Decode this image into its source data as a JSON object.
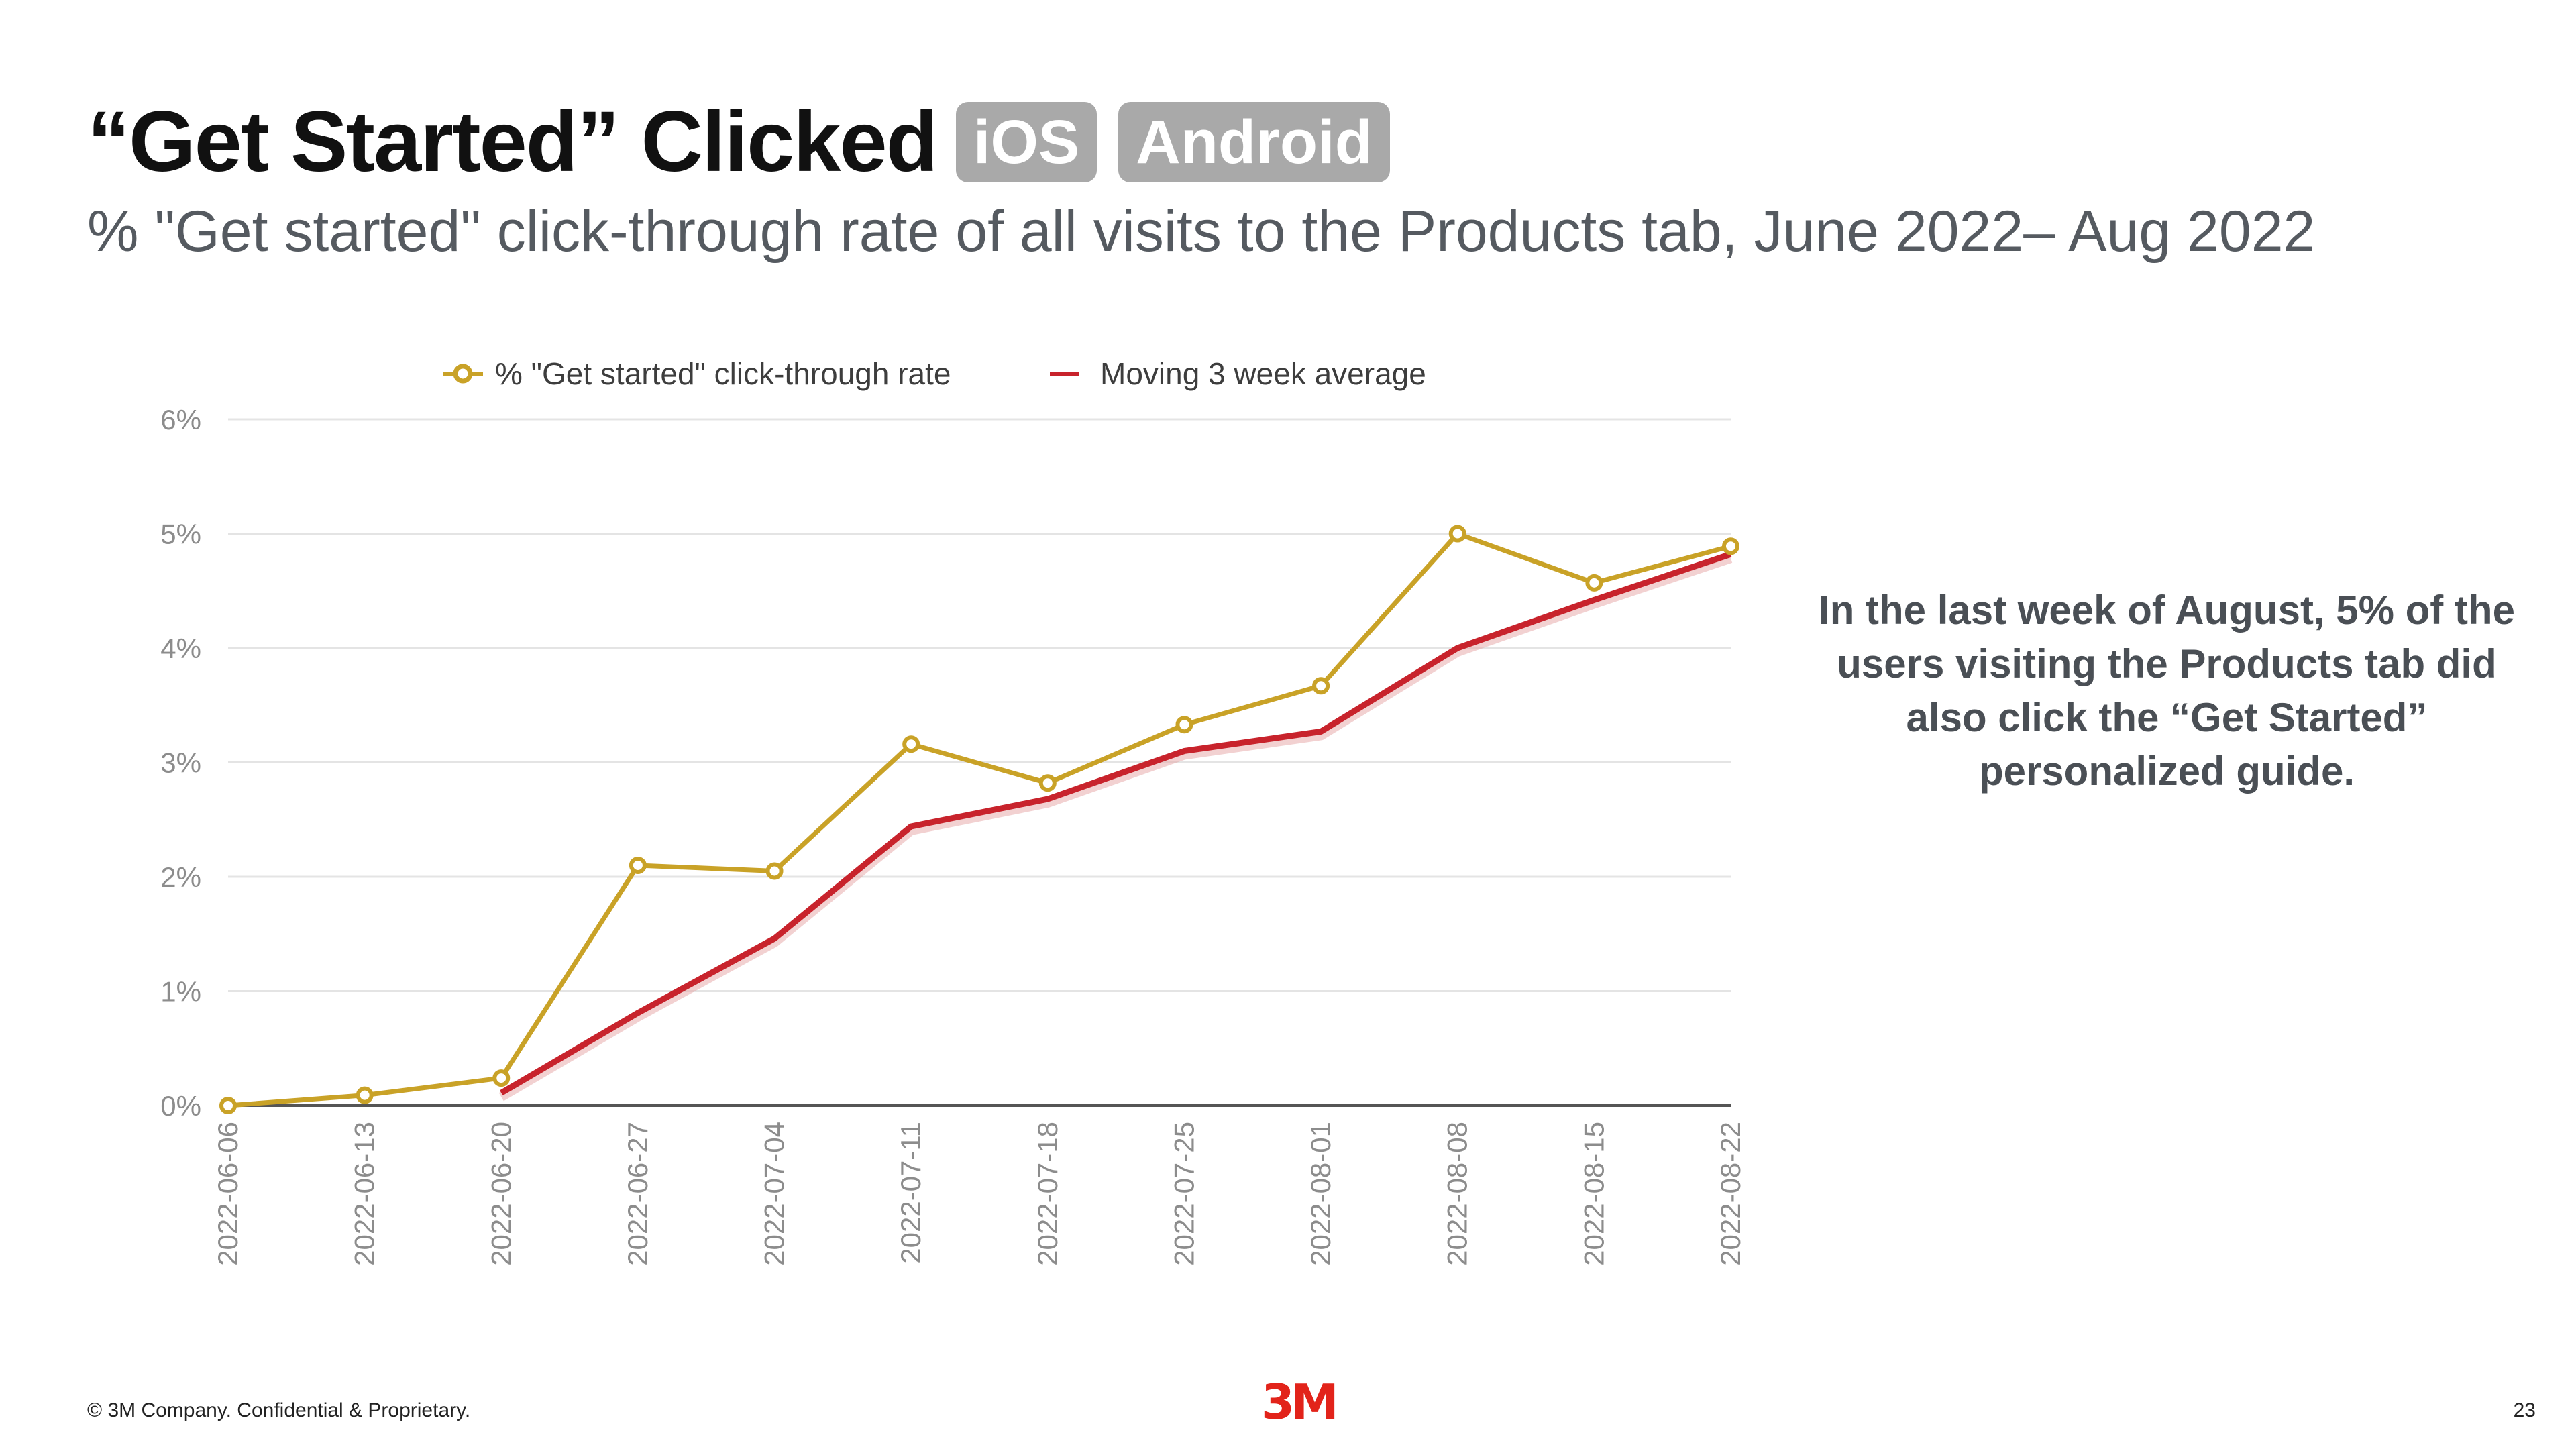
{
  "header": {
    "title": "“Get Started” Clicked",
    "tags": [
      "iOS",
      "Android"
    ],
    "subtitle": "% \"Get started\" click-through rate of all visits to the Products tab, June 2022– Aug 2022"
  },
  "callout": "In the last week of August, 5% of the users visiting the Products tab did also click the “Get Started” personalized guide.",
  "footer": {
    "copyright": "© 3M Company. Confidential & Proprietary.",
    "logo": "3M",
    "page_number": "23"
  },
  "chart_data": {
    "type": "line",
    "categories": [
      "2022-06-06",
      "2022-06-13",
      "2022-06-20",
      "2022-06-27",
      "2022-07-04",
      "2022-07-11",
      "2022-07-18",
      "2022-07-25",
      "2022-08-01",
      "2022-08-08",
      "2022-08-15",
      "2022-08-22"
    ],
    "series": [
      {
        "name": "% \"Get started\" click-through rate",
        "color": "#c9a227",
        "values": [
          0.0,
          0.09,
          0.24,
          2.1,
          2.05,
          3.16,
          2.82,
          3.33,
          3.67,
          5.0,
          4.57,
          4.89
        ]
      },
      {
        "name": "Moving 3 week average",
        "color": "#c8232c",
        "values": [
          null,
          null,
          0.11,
          0.81,
          1.46,
          2.44,
          2.68,
          3.1,
          3.27,
          4.0,
          4.42,
          4.82
        ]
      }
    ],
    "y_ticks": [
      "0%",
      "1%",
      "2%",
      "3%",
      "4%",
      "5%",
      "6%"
    ],
    "ylim": [
      0,
      6
    ],
    "legend_position": "top",
    "grid": true
  }
}
